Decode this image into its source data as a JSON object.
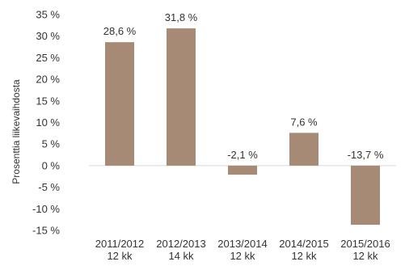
{
  "chart_data": {
    "type": "bar",
    "categories": [
      [
        "2011/2012",
        "12 kk"
      ],
      [
        "2012/2013",
        "14 kk"
      ],
      [
        "2013/2014",
        "12 kk"
      ],
      [
        "2014/2015",
        "12 kk"
      ],
      [
        "2015/2016",
        "12 kk"
      ]
    ],
    "values": [
      28.6,
      31.8,
      -2.1,
      7.6,
      -13.7
    ],
    "data_labels": [
      "28,6 %",
      "31,8 %",
      "-2,1 %",
      "7,6 %",
      "-13,7 %"
    ],
    "ylabel": "Prosenttia liikevaihdosta",
    "ylim": [
      -15,
      35
    ],
    "yticks": [
      35,
      30,
      25,
      20,
      15,
      10,
      5,
      0,
      -5,
      -10,
      -15
    ],
    "ytick_labels": [
      "35 %",
      "30 %",
      "25 %",
      "20 %",
      "15 %",
      "10 %",
      "5 %",
      "0 %",
      "-5 %",
      "-10 %",
      "-15 %"
    ],
    "grid": false,
    "legend": "none",
    "colors": {
      "bar": "#a68a75",
      "text": "#333333",
      "zero_line": "#d9d9d9"
    }
  }
}
